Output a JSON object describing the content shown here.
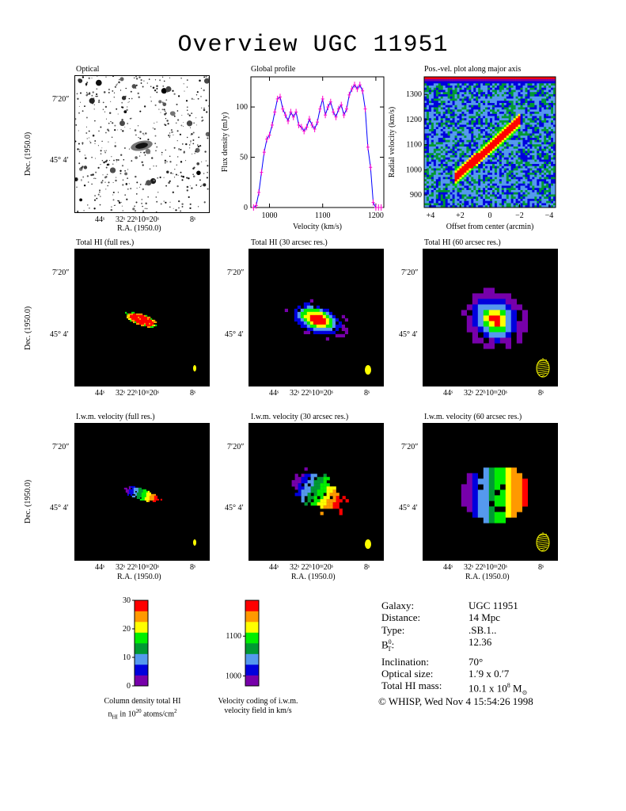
{
  "title": "Overview UGC 11951",
  "panels": {
    "optical": "Optical",
    "global_profile": "Global profile",
    "posvel": "Pos.-vel. plot along major axis",
    "hi_full": "Total HI (full res.)",
    "hi_30": "Total HI (30 arcsec res.)",
    "hi_60": "Total HI (60 arcsec res.)",
    "vel_full": "I.w.m. velocity (full res.)",
    "vel_30": "I.w.m. velocity (30 arcsec res.)",
    "vel_60": "I.w.m. velocity (60 arcsec res.)"
  },
  "axes": {
    "ra_label": "R.A. (1950.0)",
    "dec_label": "Dec. (1950.0)",
    "ra_ticks": [
      "44ˢ",
      "32ˢ 22ʰ10ᵐ20ˢ",
      "8ˢ"
    ],
    "dec_ticks": [
      "7′20″",
      "45° 4′"
    ],
    "profile_xlabel": "Velocity (km/s)",
    "profile_ylabel": "Flux density (mJy)",
    "posvel_xlabel": "Offset from center (arcmin)",
    "posvel_ylabel": "Radial velocity (km/s)"
  },
  "colors": {
    "red": "#ff0000",
    "orange": "#ff9900",
    "yellow": "#ffff00",
    "green": "#00ee00",
    "darkgreen": "#009933",
    "lightblue": "#5599ee",
    "blue": "#0000dd",
    "purple": "#7700aa",
    "profile_line": "#0000ff",
    "profile_err": "#ff00cc"
  },
  "chart_data": [
    {
      "type": "line",
      "title": "Global profile",
      "xlabel": "Velocity (km/s)",
      "ylabel": "Flux density (mJy)",
      "xlim": [
        965,
        1215
      ],
      "ylim": [
        0,
        130
      ],
      "xticks": [
        1000,
        1100,
        1200
      ],
      "yticks": [
        0,
        50,
        100
      ],
      "x": [
        970,
        975,
        980,
        985,
        990,
        995,
        1000,
        1005,
        1010,
        1015,
        1020,
        1025,
        1030,
        1035,
        1040,
        1045,
        1050,
        1055,
        1060,
        1065,
        1070,
        1075,
        1080,
        1085,
        1090,
        1095,
        1100,
        1105,
        1110,
        1115,
        1120,
        1125,
        1130,
        1135,
        1140,
        1145,
        1150,
        1155,
        1160,
        1165,
        1170,
        1175,
        1180,
        1185,
        1190,
        1195,
        1200,
        1205,
        1210
      ],
      "y": [
        0,
        2,
        15,
        35,
        55,
        68,
        72,
        82,
        95,
        108,
        110,
        98,
        92,
        86,
        95,
        90,
        95,
        82,
        80,
        76,
        80,
        88,
        82,
        78,
        85,
        98,
        108,
        92,
        100,
        105,
        95,
        90,
        98,
        102,
        92,
        98,
        112,
        118,
        122,
        118,
        122,
        116,
        98,
        60,
        40,
        5,
        0,
        0,
        0
      ]
    },
    {
      "type": "heatmap",
      "title": "Pos.-vel. plot along major axis",
      "xlabel": "Offset from center (arcmin)",
      "ylabel": "Radial velocity (km/s)",
      "xlim": [
        4.2,
        -4.2
      ],
      "ylim": [
        850,
        1370
      ],
      "xticks": [
        "+4",
        "+2",
        "0",
        "−2",
        "−4"
      ],
      "yticks": [
        900,
        1000,
        1100,
        1200,
        1300
      ]
    },
    {
      "type": "heatmap",
      "title": "Column density total HI",
      "colorbar_ticks": [
        0,
        10,
        20,
        30
      ],
      "colorbar_range": [
        0,
        30
      ]
    },
    {
      "type": "heatmap",
      "title": "Velocity coding of i.w.m. velocity field",
      "colorbar_ticks": [
        1000,
        1100
      ],
      "colorbar_range": [
        975,
        1190
      ]
    }
  ],
  "colorbars": {
    "density_caption_1": "Column density total HI",
    "density_caption_2": "n",
    "density_caption_2_sub": "HI",
    "density_caption_2b": " in 10",
    "density_caption_2_sup": "20",
    "density_caption_2c": " atoms/cm",
    "density_caption_2_sup2": "2",
    "velocity_caption_1": "Velocity coding of i.w.m.",
    "velocity_caption_2": "velocity field in km/s"
  },
  "info": {
    "galaxy_k": "Galaxy:",
    "galaxy_v": "UGC 11951",
    "distance_k": "Distance:",
    "distance_v": "14 Mpc",
    "type_k": "Type:",
    "type_v": ".SB.1..",
    "bt_k_main": "B",
    "bt_k_sup": "0",
    "bt_k_sub": "T",
    "bt_k_colon": ":",
    "bt_v": "12.36",
    "incl_k": "Inclination:",
    "incl_v": "70°",
    "optsize_k": "Optical size:",
    "optsize_v": "1.′9 x 0.′7",
    "himass_k": "Total HI mass:",
    "himass_v": "10.1 x 10",
    "himass_sup": "8",
    "himass_unit": " M",
    "himass_sub": "⊙"
  },
  "copyright": "© WHISP, Wed Nov  4 15:54:26 1998"
}
